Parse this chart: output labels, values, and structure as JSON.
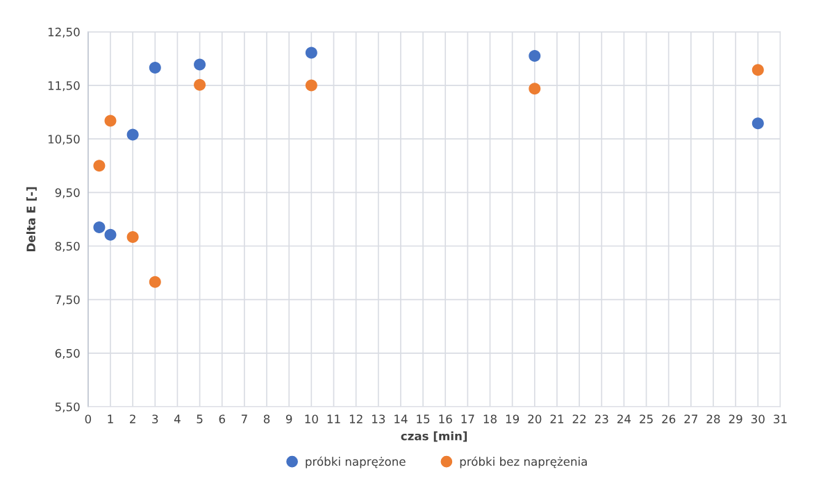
{
  "chart_data": {
    "type": "scatter",
    "xlabel": "czas [min]",
    "ylabel": "Delta E [-]",
    "xlim": [
      0,
      31
    ],
    "xticks": [
      0,
      1,
      2,
      3,
      4,
      5,
      6,
      7,
      8,
      9,
      10,
      11,
      12,
      13,
      14,
      15,
      16,
      17,
      18,
      19,
      20,
      21,
      22,
      23,
      24,
      25,
      26,
      27,
      28,
      29,
      30,
      31
    ],
    "ylim": [
      5.5,
      12.5
    ],
    "yticks": [
      {
        "value": 5.5,
        "label": "5,50"
      },
      {
        "value": 6.5,
        "label": "6,50"
      },
      {
        "value": 7.5,
        "label": "7,50"
      },
      {
        "value": 8.5,
        "label": "8,50"
      },
      {
        "value": 9.5,
        "label": "9,50"
      },
      {
        "value": 10.5,
        "label": "10,50"
      },
      {
        "value": 11.5,
        "label": "11,50"
      },
      {
        "value": 12.5,
        "label": "12,50"
      }
    ],
    "grid": true,
    "legend": "bottom",
    "marker": "circle",
    "series": [
      {
        "name": "próbki naprężone",
        "color": "#4472c4",
        "x": [
          0.5,
          1,
          2,
          3,
          5,
          10,
          20,
          30
        ],
        "values": [
          8.85,
          8.71,
          10.58,
          11.83,
          11.89,
          12.11,
          12.05,
          10.79
        ]
      },
      {
        "name": "próbki bez naprężenia",
        "color": "#ed7d31",
        "x": [
          0.5,
          1,
          2,
          3,
          5,
          10,
          20,
          30
        ],
        "values": [
          10.0,
          10.84,
          8.67,
          7.83,
          11.51,
          11.5,
          11.44,
          11.79
        ]
      }
    ]
  }
}
